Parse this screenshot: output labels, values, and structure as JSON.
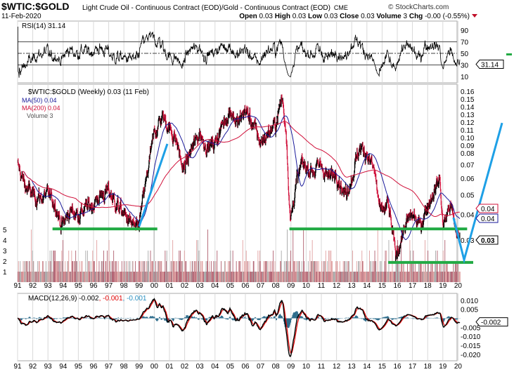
{
  "header": {
    "symbol": "$WTIC:$GOLD",
    "description": "Light Crude Oil - Continuous Contract (EOD)/Gold - Continuous Contract (EOD)",
    "exchange": "CME",
    "watermark": "© StockCharts.com",
    "date": "11-Feb-2020",
    "open_label": "Open",
    "open": "0.03",
    "high_label": "High",
    "high": "0.03",
    "low_label": "Low",
    "low": "0.03",
    "close_label": "Close",
    "close": "0.03",
    "volume_label": "Volume",
    "volume": "3",
    "chg_label": "Chg",
    "chg": "-0.00 (-0.55%)",
    "chg_direction": "down"
  },
  "colors": {
    "up_bar": "#000000",
    "down_bar": "#d0103a",
    "ma50": "#1a1a9a",
    "ma200": "#d0103a",
    "support_line": "#22aa44",
    "trend_line": "#1ea0e6",
    "macd": "#000000",
    "signal": "#e00000",
    "histogram": "#2a6a8a",
    "grid": "#d8d8d8"
  },
  "chart_data": [
    {
      "type": "line",
      "panel": "RSI",
      "legend": "RSI(14) 31.14",
      "current_value": "31.14",
      "ylim": [
        0,
        100
      ],
      "yticks": [
        "90",
        "70",
        "50",
        "30",
        "10"
      ],
      "reference_lines": [
        70,
        50,
        30
      ]
    },
    {
      "type": "ohlc",
      "panel": "price",
      "title": "$WTIC:$GOLD (Weekly) 0.03 (11 Feb)",
      "legend": [
        {
          "name": "MA(50) 0.04",
          "color": "#1a1a9a"
        },
        {
          "name": "MA(200) 0.04",
          "color": "#d0103a"
        },
        {
          "name": "Volume 3",
          "color": "#777777"
        }
      ],
      "y_scale": "log",
      "ylim": [
        0.022,
        0.165
      ],
      "yticks": [
        "0.16",
        "0.15",
        "0.14",
        "0.13",
        "0.12",
        "0.11",
        "0.10",
        "0.09",
        "0.08",
        "0.07",
        "0.06",
        "0.05",
        "0.04",
        "0.03"
      ],
      "price_tags": [
        "0.04",
        "0.04",
        "0.03"
      ],
      "volume_ticks": [
        "5",
        "4",
        "3",
        "2",
        "1"
      ],
      "xticks": [
        "91",
        "92",
        "93",
        "94",
        "95",
        "96",
        "97",
        "98",
        "99",
        "00",
        "01",
        "02",
        "03",
        "04",
        "05",
        "06",
        "07",
        "08",
        "09",
        "10",
        "11",
        "12",
        "13",
        "14",
        "15",
        "16",
        "17",
        "18",
        "19",
        "20"
      ],
      "series": [
        {
          "x": [
            1991.0,
            1991.5,
            1992.0,
            1992.5,
            1993.0,
            1993.5,
            1993.9,
            1994.5,
            1995.0,
            1995.5,
            1996.0,
            1996.5,
            1997.0,
            1997.5,
            1998.0,
            1998.5,
            1998.9,
            1999.5,
            2000.0,
            2000.5,
            2000.9,
            2001.5,
            2001.9,
            2002.5,
            2003.0,
            2003.5,
            2004.0,
            2004.5,
            2005.0,
            2005.5,
            2006.0,
            2006.5,
            2007.0,
            2007.5,
            2008.0,
            2008.4,
            2008.7,
            2008.95,
            2009.3,
            2009.7,
            2010.5,
            2011.0,
            2011.5,
            2012.0,
            2012.5,
            2013.0,
            2013.5,
            2014.0,
            2014.5,
            2014.9,
            2015.4,
            2015.9,
            2016.5,
            2017.0,
            2017.5,
            2018.0,
            2018.8,
            2019.0,
            2019.5,
            2019.8,
            2020.1
          ],
          "y": [
            0.07,
            0.055,
            0.05,
            0.048,
            0.05,
            0.045,
            0.035,
            0.042,
            0.04,
            0.043,
            0.045,
            0.05,
            0.052,
            0.045,
            0.04,
            0.036,
            0.033,
            0.06,
            0.1,
            0.12,
            0.11,
            0.09,
            0.065,
            0.085,
            0.1,
            0.085,
            0.09,
            0.11,
            0.13,
            0.11,
            0.13,
            0.11,
            0.09,
            0.1,
            0.11,
            0.15,
            0.1,
            0.036,
            0.055,
            0.07,
            0.065,
            0.07,
            0.06,
            0.065,
            0.05,
            0.06,
            0.085,
            0.08,
            0.065,
            0.04,
            0.045,
            0.025,
            0.035,
            0.04,
            0.035,
            0.045,
            0.06,
            0.035,
            0.045,
            0.035,
            0.03
          ]
        }
      ],
      "annotations": [
        {
          "kind": "support",
          "from": [
            1993.3,
            0.034
          ],
          "to": [
            2000.2,
            0.034
          ]
        },
        {
          "kind": "support",
          "from": [
            2008.9,
            0.034
          ],
          "to": [
            2020.6,
            0.034
          ]
        },
        {
          "kind": "support",
          "from": [
            2015.4,
            0.0233
          ],
          "to": [
            2021.0,
            0.0233
          ]
        },
        {
          "kind": "trend",
          "points": [
            [
              1999.0,
              0.0349
            ],
            [
              2000.86,
              0.0885
            ]
          ]
        },
        {
          "kind": "trend",
          "points": [
            [
              2019.7,
              0.0386
            ],
            [
              2020.4,
              0.024
            ],
            [
              2022.9,
              0.112
            ]
          ]
        }
      ]
    },
    {
      "type": "line",
      "panel": "MACD",
      "legend_main": "MACD(12,26,9) -0.002",
      "legend_signal": ", -0.001",
      "legend_hist": ", -0.001",
      "current_value": "-0.002",
      "ylim": [
        -0.022,
        0.013
      ],
      "yticks": [
        "0.010",
        "0.005",
        "0.000",
        "-0.005",
        "-0.010",
        "-0.015",
        "-0.020"
      ]
    }
  ]
}
